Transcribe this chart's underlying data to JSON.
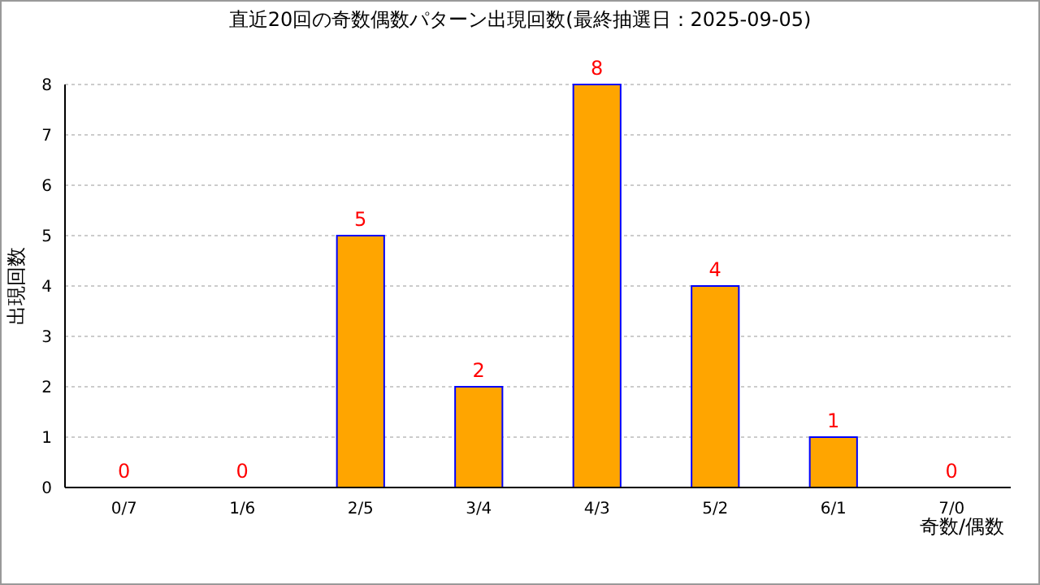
{
  "chart_data": {
    "type": "bar",
    "title": "直近20回の奇数偶数パターン出現回数(最終抽選日：2025-09-05)",
    "xlabel": "奇数/偶数",
    "ylabel": "出現回数",
    "categories": [
      "0/7",
      "1/6",
      "2/5",
      "3/4",
      "4/3",
      "5/2",
      "6/1",
      "7/0"
    ],
    "values": [
      0,
      0,
      5,
      2,
      8,
      4,
      1,
      0
    ],
    "color": "#ffa500",
    "ylim": [
      0,
      8
    ],
    "yticks": [
      0,
      1,
      2,
      3,
      4,
      5,
      6,
      7,
      8
    ],
    "grid": "y",
    "data_labels": true
  }
}
